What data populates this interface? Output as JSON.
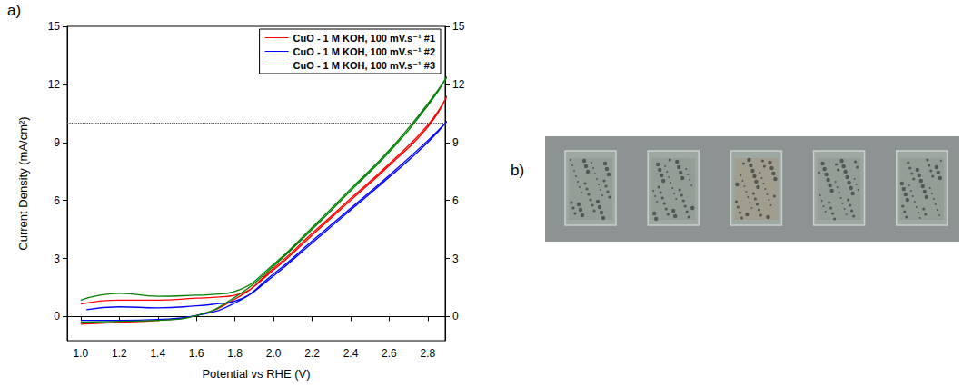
{
  "chart_data": {
    "type": "line",
    "panel_label": "a)",
    "x_label": "Potential vs RHE (V)",
    "y_label": "Current Density (mA/cm²)",
    "xlim": [
      0.93,
      2.89
    ],
    "xticks": [
      {
        "value": 1,
        "label": "1.0"
      },
      1.2,
      1.4,
      1.6,
      1.8,
      {
        "value": 2,
        "label": "2.0"
      },
      2.2,
      2.4,
      2.6,
      2.8
    ],
    "ylim": [
      -1.25,
      15
    ],
    "yticks": [
      0,
      3,
      6,
      9,
      12,
      15
    ],
    "y2lim": [
      -1.25,
      15
    ],
    "y2ticks": [
      0,
      3,
      6,
      9,
      12,
      15
    ],
    "grid": false,
    "legend": "upper right",
    "reference_lines": [
      {
        "y": 10,
        "line_style": "dotted"
      }
    ],
    "series": [
      {
        "name": "CuO - 1 M KOH, 100 mV.s⁻¹ #1",
        "color": "#ff0000",
        "x": [
          1.0,
          1.2,
          1.4,
          1.6,
          1.8,
          2.0,
          2.2,
          2.4,
          2.6,
          2.8,
          2.9,
          2.8,
          2.6,
          2.4,
          2.2,
          2.0,
          1.8,
          1.7,
          1.6,
          1.4,
          1.2,
          1.0
        ],
        "values": [
          -0.4,
          -0.3,
          -0.2,
          0.05,
          0.9,
          2.4,
          4.2,
          6.0,
          7.8,
          9.8,
          11.4,
          9.9,
          7.9,
          6.1,
          4.3,
          2.5,
          1.1,
          1.0,
          0.95,
          0.85,
          0.85,
          0.65
        ]
      },
      {
        "name": "CuO - 1 M KOH, 100 mV.s⁻¹ #2",
        "color": "#0000ff",
        "x": [
          1.0,
          1.2,
          1.4,
          1.6,
          1.8,
          2.0,
          2.2,
          2.4,
          2.6,
          2.8,
          2.9,
          2.8,
          2.6,
          2.4,
          2.2,
          2.0,
          1.8,
          1.7,
          1.6,
          1.4,
          1.2,
          1.03
        ],
        "values": [
          -0.2,
          -0.2,
          -0.15,
          0.05,
          0.7,
          2.1,
          3.8,
          5.5,
          7.2,
          9.0,
          10.1,
          9.1,
          7.3,
          5.6,
          3.9,
          2.2,
          0.8,
          0.65,
          0.55,
          0.45,
          0.5,
          0.35
        ]
      },
      {
        "name": "CuO - 1 M KOH, 100 mV.s⁻¹ #3",
        "color": "#008000",
        "x": [
          1.0,
          1.2,
          1.4,
          1.6,
          1.8,
          2.0,
          2.2,
          2.4,
          2.6,
          2.8,
          2.9,
          2.8,
          2.6,
          2.4,
          2.2,
          2.0,
          1.8,
          1.7,
          1.6,
          1.4,
          1.2,
          1.1,
          1.0
        ],
        "values": [
          -0.3,
          -0.25,
          -0.2,
          0.05,
          1.0,
          2.6,
          4.5,
          6.5,
          8.5,
          10.9,
          12.4,
          11.0,
          8.6,
          6.6,
          4.6,
          2.7,
          1.3,
          1.15,
          1.1,
          1.05,
          1.2,
          1.1,
          0.85
        ]
      }
    ]
  },
  "photo": {
    "panel_label": "b)",
    "samples": 5
  }
}
